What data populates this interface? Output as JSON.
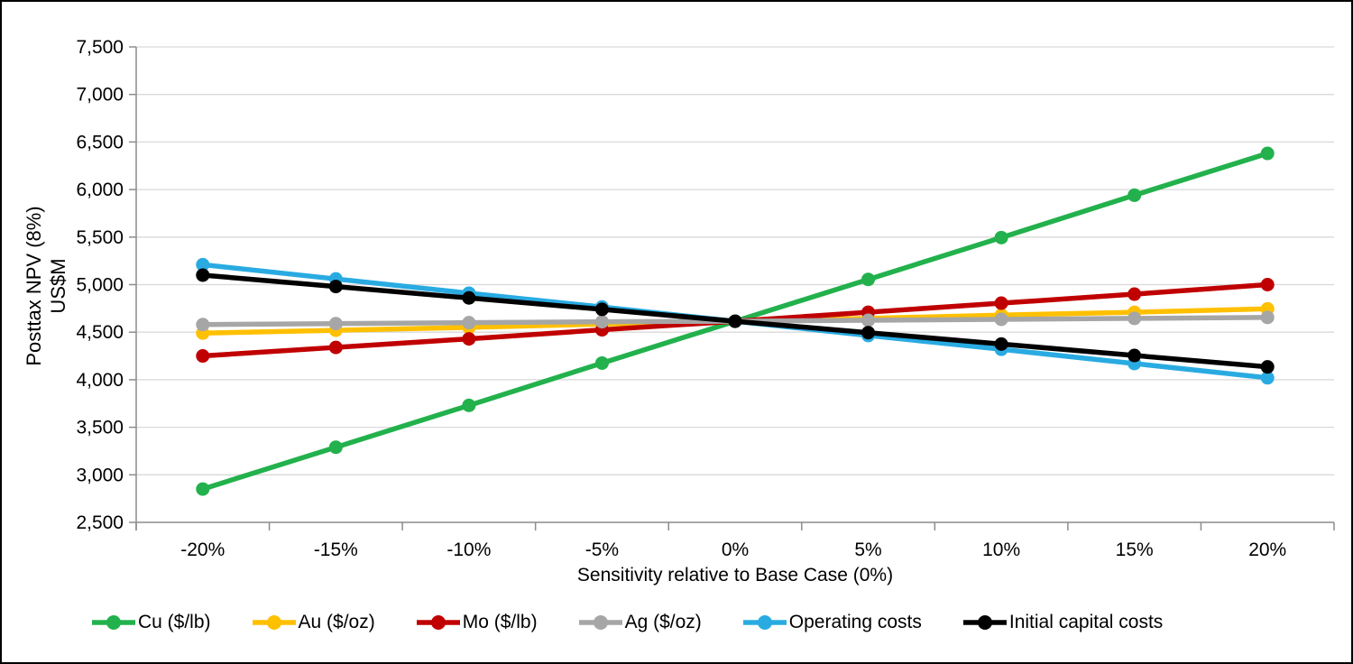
{
  "frame": {
    "border_color": "#000000",
    "background": "#FFFFFF"
  },
  "colors": {
    "grid": "#D9D9D9",
    "axis": "#8C8C8C",
    "text": "#000000"
  },
  "chart_data": {
    "type": "line",
    "title": "",
    "xlabel": "Sensitivity relative to Base Case (0%)",
    "ylabel_line1": "Posttax NPV (8%)",
    "ylabel_line2": "US$M",
    "x": [
      "-20%",
      "-15%",
      "-10%",
      "-5%",
      "0%",
      "5%",
      "10%",
      "15%",
      "20%"
    ],
    "ylim": [
      2500,
      7500
    ],
    "ytick_step": 500,
    "ytick_labels": [
      "2,500",
      "3,000",
      "3,500",
      "4,000",
      "4,500",
      "5,000",
      "5,500",
      "6,000",
      "6,500",
      "7,000",
      "7,500"
    ],
    "grid": true,
    "legend_position": "bottom",
    "base_case_npv": 4615,
    "series": [
      {
        "name": "Cu ($/lb)",
        "color": "#22B14C",
        "values": [
          2850,
          3290,
          3730,
          4175,
          4615,
          5055,
          5495,
          5940,
          6380
        ]
      },
      {
        "name": "Au ($/oz)",
        "color": "#FFC000",
        "values": [
          4490,
          4520,
          4550,
          4585,
          4615,
          4645,
          4680,
          4710,
          4745
        ]
      },
      {
        "name": "Mo ($/lb)",
        "color": "#C00000",
        "values": [
          4250,
          4340,
          4430,
          4525,
          4615,
          4710,
          4805,
          4900,
          5000
        ]
      },
      {
        "name": "Ag ($/oz)",
        "color": "#A6A6A6",
        "values": [
          4580,
          4590,
          4600,
          4610,
          4615,
          4625,
          4635,
          4645,
          4655
        ]
      },
      {
        "name": "Operating costs",
        "color": "#29ABE2",
        "values": [
          5210,
          5060,
          4910,
          4765,
          4615,
          4465,
          4320,
          4170,
          4020
        ]
      },
      {
        "name": "Initial capital costs",
        "color": "#000000",
        "values": [
          5100,
          4980,
          4860,
          4740,
          4615,
          4495,
          4375,
          4255,
          4135
        ]
      }
    ]
  }
}
